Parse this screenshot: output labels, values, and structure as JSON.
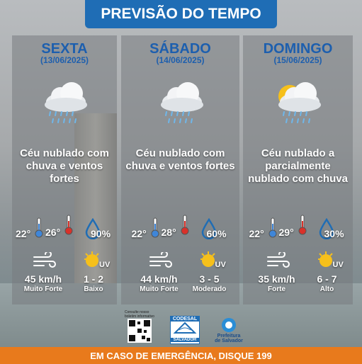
{
  "header": {
    "title": "PREVISÃO DO TEMPO"
  },
  "days": [
    {
      "name": "SEXTA",
      "date": "(13/06/2025)",
      "description": "Céu nublado com chuva e ventos fortes",
      "temp_min": "22°",
      "temp_max": "26°",
      "humidity": "90%",
      "wind_speed": "45 km/h",
      "wind_label": "Muito Forte",
      "uv_index": "1 - 2",
      "uv_label": "Baixo",
      "icon": "rain"
    },
    {
      "name": "SÁBADO",
      "date": "(14/06/2025)",
      "description": "Céu nublado com chuva e ventos fortes",
      "temp_min": "22°",
      "temp_max": "28°",
      "humidity": "60%",
      "wind_speed": "44 km/h",
      "wind_label": "Muito Forte",
      "uv_index": "3 - 5",
      "uv_label": "Moderado",
      "icon": "rain"
    },
    {
      "name": "DOMINGO",
      "date": "(15/06/2025)",
      "description": "Céu nublado a parcialmente nublado com chuva",
      "temp_min": "22°",
      "temp_max": "29°",
      "humidity": "30%",
      "wind_speed": "35 km/h",
      "wind_label": "Forte",
      "uv_index": "6 - 7",
      "uv_label": "Alto",
      "icon": "sun-rain"
    }
  ],
  "uv_icon_text": "UV",
  "footer": {
    "bulletin": "Consulte nosso boletim informativo",
    "codesal": "CODESAL",
    "codesal_city": "SALVADOR",
    "prefeitura": "Prefeitura de Salvador",
    "emergency": "EM CASO DE EMERGÊNCIA, DISQUE 199"
  }
}
